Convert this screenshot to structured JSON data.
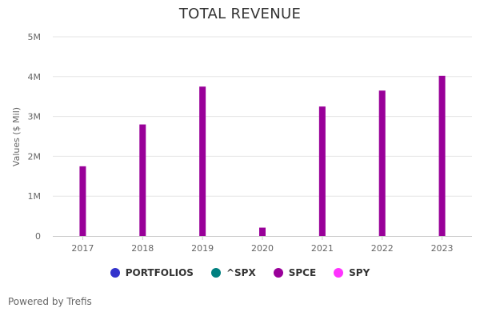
{
  "chart_data": {
    "type": "bar",
    "title": "TOTAL REVENUE",
    "xlabel": "",
    "ylabel": "Values ($ Mil)",
    "categories": [
      "2017",
      "2018",
      "2019",
      "2020",
      "2021",
      "2022",
      "2023"
    ],
    "series": [
      {
        "name": "SPCE",
        "color": "#990099",
        "values": [
          1750000,
          2800000,
          3750000,
          210000,
          3250000,
          3650000,
          4020000
        ]
      }
    ],
    "ylim": [
      0,
      5000000
    ],
    "y_ticks": [
      {
        "value": 0,
        "label": "0"
      },
      {
        "value": 1000000,
        "label": "1M"
      },
      {
        "value": 2000000,
        "label": "2M"
      },
      {
        "value": 3000000,
        "label": "3M"
      },
      {
        "value": 4000000,
        "label": "4M"
      },
      {
        "value": 5000000,
        "label": "5M"
      }
    ],
    "grid": true,
    "legend_position": "bottom-center"
  },
  "legend": {
    "items": [
      {
        "label": "PORTFOLIOS",
        "color": "#3333cc"
      },
      {
        "label": "^SPX",
        "color": "#008080"
      },
      {
        "label": "SPCE",
        "color": "#990099"
      },
      {
        "label": "SPY",
        "color": "#ff33ff"
      }
    ]
  },
  "footer": {
    "credit": "Powered by Trefis"
  },
  "colors": {
    "grid": "#e6e6e6",
    "axis": "#cccccc",
    "tick_label": "#666666"
  }
}
